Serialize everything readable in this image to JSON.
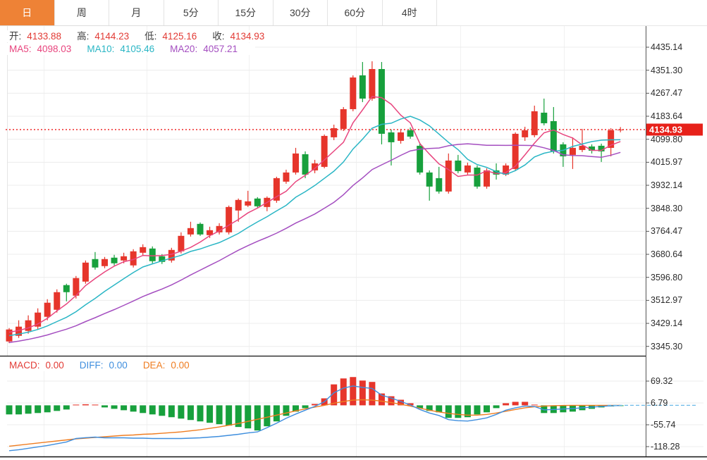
{
  "tabs": {
    "items": [
      "日",
      "周",
      "月",
      "5分",
      "15分",
      "30分",
      "60分",
      "4时"
    ],
    "active_index": 0
  },
  "info_rows": {
    "ohlc": [
      {
        "label": "开:",
        "value": "4133.88",
        "label_color": "#3c3c3c",
        "color": "#e23b35"
      },
      {
        "label": "高:",
        "value": "4144.23",
        "label_color": "#3c3c3c",
        "color": "#e23b35"
      },
      {
        "label": "低:",
        "value": "4125.16",
        "label_color": "#3c3c3c",
        "color": "#e23b35"
      },
      {
        "label": "收:",
        "value": "4134.93",
        "label_color": "#3c3c3c",
        "color": "#e23b35"
      }
    ],
    "ma": [
      {
        "label": "MA5:",
        "value": "4098.03",
        "color": "#e8457e"
      },
      {
        "label": "MA10:",
        "value": "4105.46",
        "color": "#2ab6c5"
      },
      {
        "label": "MA20:",
        "value": "4057.21",
        "color": "#a44ec0"
      }
    ],
    "macd": [
      {
        "label": "MACD:",
        "value": "0.00",
        "color": "#e23b35"
      },
      {
        "label": "DIFF:",
        "value": "0.00",
        "color": "#3e8ede"
      },
      {
        "label": "DEA:",
        "value": "0.00",
        "color": "#ef7d21"
      }
    ]
  },
  "colors": {
    "up": "#e6352b",
    "down": "#17a03c",
    "ma5": "#e8457e",
    "ma10": "#2ab6c5",
    "ma20": "#a44ec0",
    "diff": "#3e8ede",
    "dea": "#ef7d21",
    "tab_active_bg": "#ee8236",
    "price_line": "#f13b3b",
    "price_label_bg": "#e7211a",
    "price_label_text": "#ffffff",
    "zero_dash": "#6cb9e8"
  },
  "chart_data": {
    "type": "candlestick",
    "title": "",
    "price_axis": {
      "ticks": [
        "4435.14",
        "4351.30",
        "4267.47",
        "4183.64",
        "4099.80",
        "4015.97",
        "3932.14",
        "3848.30",
        "3764.47",
        "3680.64",
        "3596.80",
        "3512.97",
        "3429.14",
        "3345.30"
      ],
      "top_value": 4435.14,
      "tick_step": 83.84
    },
    "current_price": {
      "label": "4134.93",
      "price": 4134.93
    },
    "last_ohlc": {
      "open": 4133.88,
      "high": 4144.23,
      "low": 4125.16,
      "close": 4134.93
    },
    "ma_periods": [
      5,
      10,
      20
    ],
    "ma_seed_step": 5,
    "ma_last_values": {
      "ma5": 4098.03,
      "ma10": 4105.46,
      "ma20": 4057.21
    },
    "candles": [
      [
        3363.2,
        3412.0,
        3357.0,
        3406.8
      ],
      [
        3383.7,
        3440.2,
        3376.0,
        3417.1
      ],
      [
        3401.6,
        3458.2,
        3391.4,
        3440.2
      ],
      [
        3417.1,
        3483.8,
        3406.8,
        3468.4
      ],
      [
        3453.0,
        3517.1,
        3440.2,
        3504.3
      ],
      [
        3478.6,
        3553.0,
        3468.4,
        3542.7
      ],
      [
        3568.4,
        3573.5,
        3509.4,
        3542.7
      ],
      [
        3529.9,
        3601.7,
        3519.6,
        3594.0
      ],
      [
        3581.2,
        3658.1,
        3573.5,
        3650.4
      ],
      [
        3663.3,
        3688.9,
        3624.8,
        3632.5
      ],
      [
        3637.6,
        3671.0,
        3629.9,
        3663.3
      ],
      [
        3668.4,
        3678.7,
        3640.2,
        3647.9
      ],
      [
        3658.1,
        3686.3,
        3647.9,
        3673.5
      ],
      [
        3640.2,
        3699.2,
        3632.5,
        3691.5
      ],
      [
        3686.3,
        3717.1,
        3676.1,
        3706.8
      ],
      [
        3701.7,
        3709.4,
        3647.9,
        3655.6
      ],
      [
        3673.5,
        3681.2,
        3645.3,
        3653.0
      ],
      [
        3658.1,
        3704.3,
        3650.4,
        3696.6
      ],
      [
        3691.5,
        3760.7,
        3683.8,
        3747.9
      ],
      [
        3753.0,
        3799.2,
        3745.3,
        3776.1
      ],
      [
        3791.5,
        3796.6,
        3747.9,
        3753.0
      ],
      [
        3750.4,
        3781.2,
        3740.2,
        3768.4
      ],
      [
        3760.7,
        3794.0,
        3753.0,
        3783.8
      ],
      [
        3760.7,
        3858.2,
        3753.0,
        3853.0
      ],
      [
        3840.2,
        3883.8,
        3799.2,
        3878.7
      ],
      [
        3858.2,
        3912.0,
        3853.0,
        3873.5
      ],
      [
        3883.8,
        3888.9,
        3850.4,
        3855.6
      ],
      [
        3853.0,
        3891.5,
        3837.6,
        3886.4
      ],
      [
        3876.1,
        3963.3,
        3868.4,
        3958.1
      ],
      [
        3945.3,
        3988.9,
        3937.6,
        3978.7
      ],
      [
        3978.7,
        4068.4,
        3971.0,
        4047.9
      ],
      [
        4045.3,
        4055.6,
        3958.1,
        3971.0
      ],
      [
        3986.4,
        4024.8,
        3976.1,
        4012.0
      ],
      [
        3999.2,
        4117.1,
        3994.0,
        4112.0
      ],
      [
        4106.9,
        4153.0,
        4096.6,
        4140.2
      ],
      [
        4137.6,
        4217.1,
        4129.9,
        4209.4
      ],
      [
        4209.4,
        4332.5,
        4201.7,
        4324.8
      ],
      [
        4332.5,
        4381.2,
        4235.1,
        4247.9
      ],
      [
        4247.9,
        4383.8,
        4240.2,
        4355.6
      ],
      [
        4355.6,
        4381.2,
        4081.2,
        4119.7
      ],
      [
        4124.8,
        4135.1,
        4004.3,
        4088.9
      ],
      [
        4094.0,
        4137.6,
        4083.8,
        4124.8
      ],
      [
        4132.5,
        4142.8,
        4101.7,
        4109.4
      ],
      [
        4076.1,
        4086.4,
        3971.0,
        3978.7
      ],
      [
        3978.7,
        3986.4,
        3876.1,
        3927.4
      ],
      [
        3958.1,
        3999.2,
        3901.7,
        3909.4
      ],
      [
        3909.4,
        4047.9,
        3901.7,
        4022.2
      ],
      [
        4022.2,
        4042.8,
        3976.1,
        3983.8
      ],
      [
        3978.7,
        4014.6,
        3971.0,
        4004.3
      ],
      [
        3996.6,
        4004.3,
        3919.7,
        3927.4
      ],
      [
        3927.4,
        3994.0,
        3919.7,
        3986.4
      ],
      [
        3986.4,
        4012.0,
        3953.0,
        3971.0
      ],
      [
        3971.0,
        4012.0,
        3965.8,
        4004.3
      ],
      [
        3991.5,
        4124.8,
        3983.8,
        4119.7
      ],
      [
        4106.9,
        4145.3,
        4094.0,
        4132.5
      ],
      [
        4114.6,
        4222.2,
        4106.9,
        4201.7
      ],
      [
        4196.6,
        4247.9,
        4150.4,
        4158.1
      ],
      [
        4165.8,
        4217.1,
        4047.9,
        4055.6
      ],
      [
        4081.2,
        4088.9,
        3999.2,
        4037.6
      ],
      [
        4042.8,
        4106.9,
        3991.5,
        4068.4
      ],
      [
        4060.7,
        4137.6,
        4053.0,
        4076.1
      ],
      [
        4073.5,
        4081.2,
        4047.9,
        4058.1
      ],
      [
        4076.1,
        4083.8,
        4017.1,
        4055.6
      ],
      [
        4068.4,
        4140.2,
        4037.6,
        4132.5
      ],
      [
        4133.88,
        4144.23,
        4125.16,
        4134.93
      ]
    ],
    "macd": {
      "ticks": [
        "69.32",
        "6.79",
        "-55.74",
        "-118.28"
      ],
      "tick_values": [
        69.32,
        6.79,
        -55.74,
        -118.28
      ],
      "last_values": {
        "macd": 0.0,
        "diff": 0.0,
        "dea": 0.0
      },
      "bars": [
        -26,
        -26,
        -24,
        -22,
        -20,
        -16,
        -12,
        2,
        3,
        2,
        -6,
        -10,
        -14,
        -18,
        -22,
        -26,
        -30,
        -34,
        -38,
        -42,
        -46,
        -50,
        -54,
        -58,
        -62,
        -66,
        -72,
        -60,
        -46,
        -30,
        -18,
        -8,
        4,
        20,
        60,
        77,
        81,
        71,
        67,
        34,
        26,
        16,
        6,
        -8,
        -16,
        -20,
        -36,
        -36,
        -34,
        -26,
        -20,
        -8,
        6,
        10,
        10,
        1,
        -22,
        -22,
        -20,
        -18,
        -14,
        -10,
        -6,
        -3,
        -1
      ],
      "dea": [
        -117,
        -114,
        -111,
        -108,
        -105,
        -102,
        -99,
        -96,
        -94,
        -92,
        -90,
        -88,
        -86,
        -85,
        -83,
        -82,
        -80,
        -78,
        -76,
        -73,
        -70,
        -66,
        -62,
        -57,
        -52,
        -46,
        -40,
        -34,
        -28,
        -22,
        -16,
        -10,
        -5,
        0,
        6,
        11,
        15,
        16,
        15,
        12,
        8,
        3,
        -2,
        -8,
        -14,
        -19,
        -23,
        -26,
        -28,
        -28,
        -26,
        -22,
        -17,
        -12,
        -7,
        -4,
        -2,
        -1,
        -0.5,
        0,
        0,
        0,
        0,
        0,
        0
      ]
    }
  }
}
